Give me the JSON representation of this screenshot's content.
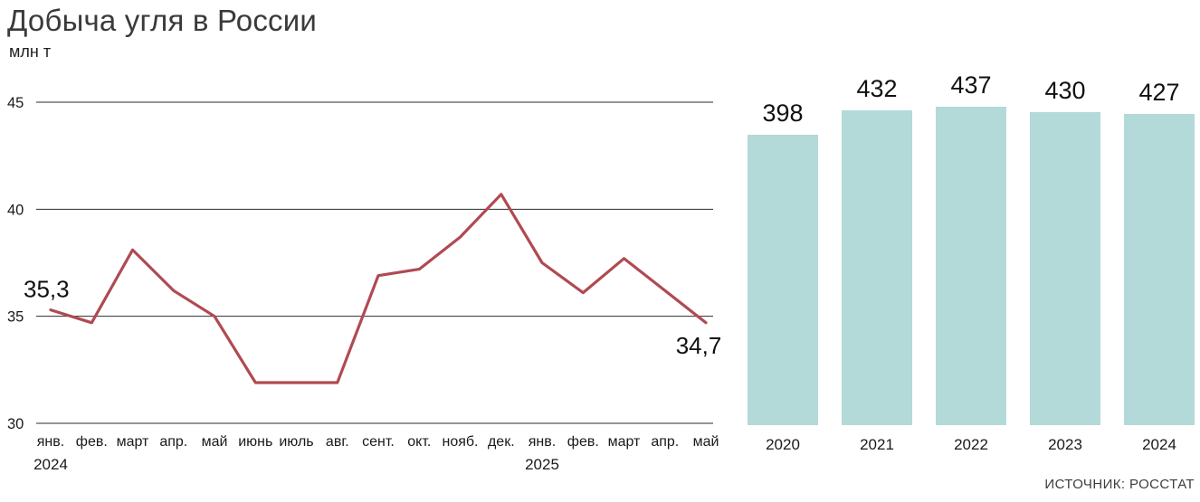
{
  "header": {
    "title": "Добыча угля в России",
    "unit": "млн т"
  },
  "source": "ИСТОЧНИК: РОССТАТ",
  "colors": {
    "line": "#b04a52",
    "bar": "#b3dad8",
    "grid": "#2b2b2b",
    "text": "#1a1a1a",
    "annotation": "#111111"
  },
  "chart_data": [
    {
      "type": "line",
      "title": "Добыча угля в России",
      "ylabel": "млн т",
      "x": [
        "янв.",
        "фев.",
        "март",
        "апр.",
        "май",
        "июнь",
        "июль",
        "авг.",
        "сент.",
        "окт.",
        "нояб.",
        "дек.",
        "янв.",
        "фев.",
        "март",
        "апр.",
        "май"
      ],
      "x_years": [
        {
          "index": 0,
          "label": "2024"
        },
        {
          "index": 12,
          "label": "2025"
        }
      ],
      "values": [
        35.3,
        34.7,
        38.1,
        36.2,
        35.0,
        31.9,
        31.9,
        31.9,
        36.9,
        37.2,
        38.7,
        40.7,
        37.5,
        36.1,
        37.7,
        36.2,
        34.7
      ],
      "ylim": [
        30,
        45
      ],
      "yticks": [
        30,
        35,
        40,
        45
      ],
      "grid": true,
      "annotations": [
        {
          "index": 0,
          "label": "35,3"
        },
        {
          "index": 16,
          "label": "34,7"
        }
      ],
      "line_color": "#b04a52"
    },
    {
      "type": "bar",
      "categories": [
        "2020",
        "2021",
        "2022",
        "2023",
        "2024"
      ],
      "values": [
        398,
        432,
        437,
        430,
        427
      ],
      "bar_color": "#b3dad8",
      "ylim": [
        0,
        460
      ],
      "grid": false
    }
  ]
}
